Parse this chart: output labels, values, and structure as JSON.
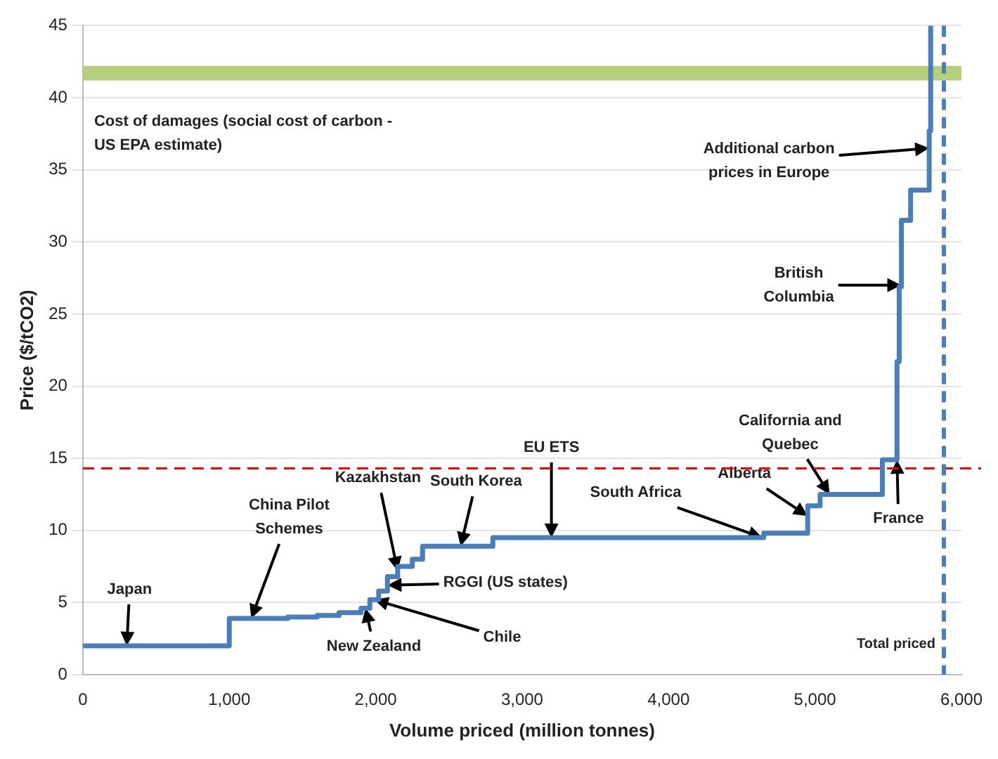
{
  "chart_data": {
    "type": "step",
    "xlabel": "Volume priced (million tonnes)",
    "ylabel": "Price ($/tCO2)",
    "x": [
      0,
      1000,
      1400,
      1600,
      1750,
      1900,
      1960,
      2020,
      2080,
      2150,
      2250,
      2320,
      2800,
      4650,
      4950,
      5035,
      5460,
      5560,
      5575,
      5590,
      5653,
      5780,
      5790
    ],
    "series": [
      {
        "color": "#4a7ebb",
        "values": [
          2,
          3.9,
          4,
          4.1,
          4.3,
          4.6,
          5.2,
          5.8,
          6.8,
          7.5,
          8,
          8.9,
          9.5,
          9.8,
          11.7,
          12.5,
          14.9,
          21.7,
          26.9,
          31.5,
          33.6,
          37.7,
          45
        ]
      }
    ],
    "xlim": [
      0,
      6000
    ],
    "xticks": [
      0,
      {
        "value": 1000,
        "label": "1,000"
      },
      {
        "value": 2000,
        "label": "2,000"
      },
      {
        "value": 3000,
        "label": "3,000"
      },
      {
        "value": 4000,
        "label": "4,000"
      },
      {
        "value": 5000,
        "label": "5,000"
      },
      {
        "value": 6000,
        "label": "6,000"
      }
    ],
    "ylim": [
      0,
      45
    ],
    "yticks": [
      0,
      5,
      10,
      15,
      20,
      25,
      30,
      35,
      40,
      45
    ],
    "grid": "y",
    "bands": [
      {
        "axis": "y",
        "from": 41.2,
        "to": 42.2,
        "label": "Cost of damages (social cost of carbon - US EPA estimate)",
        "color": "#b5cf7c"
      }
    ],
    "ref_lines": [
      {
        "axis": "y",
        "value": 14.3,
        "color": "#ff0000",
        "line_style": "dashed"
      },
      {
        "axis": "x",
        "value": 5880,
        "label": "Total priced",
        "color": "#4a7ebb",
        "line_style": "dashed"
      }
    ],
    "annotations": [
      {
        "text": "Japan",
        "x": 300,
        "y": 2
      },
      {
        "text": "China Pilot Schemes",
        "x": 1150,
        "y": 3.9
      },
      {
        "text": "Kazakhstan",
        "x": 2150,
        "y": 7.2
      },
      {
        "text": "South Korea",
        "x": 2580,
        "y": 8.9
      },
      {
        "text": "EU ETS",
        "x": 3200,
        "y": 9.5
      },
      {
        "text": "South Africa",
        "x": 4640,
        "y": 9.5
      },
      {
        "text": "Alberta",
        "x": 4950,
        "y": 11
      },
      {
        "text": "California and Quebec",
        "x": 5100,
        "y": 12.5
      },
      {
        "text": "France",
        "x": 5560,
        "y": 14.9
      },
      {
        "text": "British Columbia",
        "x": 5590,
        "y": 27
      },
      {
        "text": "Additional carbon prices in Europe",
        "x": 5780,
        "y": 36.5
      },
      {
        "text": "RGGI (US states)",
        "x": 2080,
        "y": 6.2
      },
      {
        "text": "Chile",
        "x": 1990,
        "y": 5.2
      },
      {
        "text": "New Zealand",
        "x": 1930,
        "y": 4.6
      }
    ]
  }
}
